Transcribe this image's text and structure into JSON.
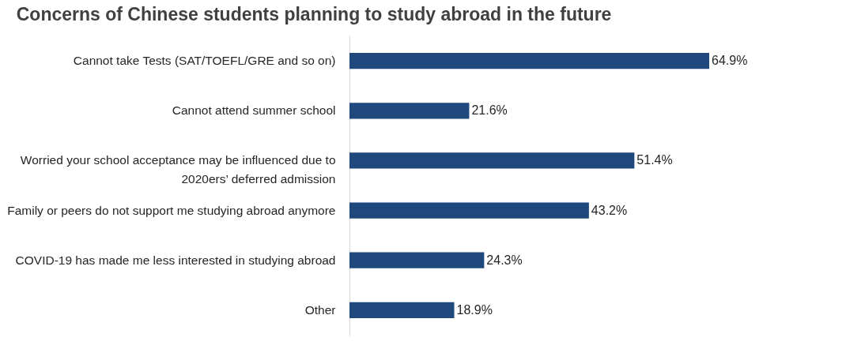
{
  "chart_data": {
    "type": "bar",
    "orientation": "horizontal",
    "title": "Concerns of Chinese students planning to study abroad in the future",
    "categories": [
      "Cannot take Tests (SAT/TOEFL/GRE and so on)",
      "Cannot attend summer school",
      "Worried your school acceptance may be influenced due to 2020ers’ deferred admission",
      "Family or peers do not support me studying abroad anymore",
      "COVID-19 has made me less interested in studying abroad",
      "Other"
    ],
    "values": [
      64.9,
      21.6,
      51.4,
      43.2,
      24.3,
      18.9
    ],
    "value_labels": [
      "64.9%",
      "21.6%",
      "51.4%",
      "43.2%",
      "24.3%",
      "18.9%"
    ],
    "color": "#1f497d"
  }
}
